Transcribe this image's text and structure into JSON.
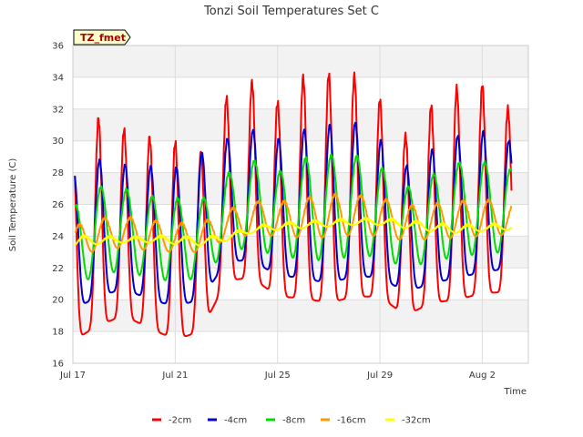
{
  "chart_data": {
    "type": "line",
    "title": "Tonzi Soil Temperatures Set C",
    "xlabel": "Time",
    "ylabel": "Soil Temperature (C)",
    "badge": "TZ_fmet",
    "xlim": [
      0,
      17.8
    ],
    "ylim": [
      16,
      36
    ],
    "yticks": [
      16,
      18,
      20,
      22,
      24,
      26,
      28,
      30,
      32,
      34,
      36
    ],
    "xticks": [
      {
        "value": 0,
        "label": "Jul 17"
      },
      {
        "value": 4,
        "label": "Jul 21"
      },
      {
        "value": 8,
        "label": "Jul 25"
      },
      {
        "value": 12,
        "label": "Jul 29"
      },
      {
        "value": 16,
        "label": "Aug 2"
      }
    ],
    "grid": true,
    "legend_position": "bottom",
    "series": [
      {
        "name": "-2cm",
        "color": "#ff0000",
        "phase": 0.0,
        "peak_sharpness": 3,
        "days": [
          0,
          1,
          2,
          3,
          4,
          5,
          6,
          7,
          8,
          9,
          10,
          11,
          12,
          13,
          14,
          15,
          16,
          17
        ],
        "max": [
          29.6,
          31.4,
          30.7,
          30.2,
          29.9,
          29.2,
          32.7,
          33.7,
          32.4,
          34.0,
          34.2,
          34.1,
          32.6,
          30.3,
          32.2,
          33.3,
          33.5,
          32.0
        ],
        "min": [
          17.4,
          18.4,
          19.0,
          18.2,
          17.5,
          18.0,
          21.2,
          21.4,
          20.2,
          20.1,
          19.8,
          20.2,
          20.2,
          19.0,
          19.8,
          20.0,
          20.4,
          20.5
        ]
      },
      {
        "name": "-4cm",
        "color": "#0000cc",
        "phase": 0.04,
        "peak_sharpness": 2,
        "days": [
          0,
          1,
          2,
          3,
          4,
          5,
          6,
          7,
          8,
          9,
          10,
          11,
          12,
          13,
          14,
          15,
          16,
          17
        ],
        "max": [
          27.9,
          28.8,
          28.5,
          28.4,
          28.3,
          29.2,
          30.1,
          30.7,
          30.1,
          30.7,
          31.0,
          31.2,
          30.1,
          28.4,
          29.4,
          30.3,
          30.6,
          30.0
        ],
        "min": [
          19.4,
          20.2,
          20.7,
          20.0,
          19.6,
          20.0,
          22.4,
          22.5,
          21.5,
          21.4,
          21.0,
          21.5,
          21.4,
          20.5,
          21.0,
          21.4,
          21.7,
          22.0
        ]
      },
      {
        "name": "-8cm",
        "color": "#00dd00",
        "phase": 0.1,
        "peak_sharpness": 1,
        "days": [
          0,
          1,
          2,
          3,
          4,
          5,
          6,
          7,
          8,
          9,
          10,
          11,
          12,
          13,
          14,
          15,
          16,
          17
        ],
        "max": [
          25.8,
          27.1,
          27.0,
          26.5,
          26.4,
          26.2,
          27.9,
          28.8,
          28.0,
          28.9,
          29.1,
          29.1,
          28.4,
          27.0,
          27.8,
          28.6,
          28.7,
          28.2
        ],
        "min": [
          20.8,
          21.6,
          21.8,
          21.4,
          21.1,
          21.4,
          23.0,
          23.3,
          22.7,
          22.6,
          22.4,
          22.8,
          22.7,
          22.0,
          22.4,
          22.7,
          22.9,
          23.0
        ]
      },
      {
        "name": "-16cm",
        "color": "#ff9900",
        "phase": 0.25,
        "peak_sharpness": 1,
        "days": [
          0,
          1,
          2,
          3,
          4,
          5,
          6,
          7,
          8,
          9,
          10,
          11,
          12,
          13,
          14,
          15,
          16,
          17
        ],
        "max": [
          24.6,
          25.1,
          25.2,
          25.0,
          24.8,
          24.8,
          25.6,
          26.2,
          26.1,
          26.4,
          26.6,
          26.6,
          26.4,
          25.9,
          26.0,
          26.2,
          26.3,
          26.1
        ],
        "min": [
          22.8,
          23.1,
          23.3,
          23.1,
          23.0,
          23.0,
          23.8,
          24.1,
          24.0,
          23.9,
          23.9,
          24.1,
          24.0,
          23.7,
          23.8,
          23.9,
          24.0,
          24.1
        ]
      },
      {
        "name": "-32cm",
        "color": "#ffff00",
        "phase": 0.45,
        "peak_sharpness": 1,
        "days": [
          0,
          1,
          2,
          3,
          4,
          5,
          6,
          7,
          8,
          9,
          10,
          11,
          12,
          13,
          14,
          15,
          16,
          17
        ],
        "max": [
          24.0,
          24.0,
          23.9,
          24.0,
          24.0,
          23.9,
          24.1,
          24.6,
          24.8,
          24.9,
          25.0,
          25.1,
          25.1,
          25.0,
          24.8,
          24.7,
          24.7,
          24.8
        ],
        "min": [
          23.3,
          23.5,
          23.6,
          23.6,
          23.5,
          23.4,
          23.7,
          24.2,
          24.4,
          24.5,
          24.6,
          24.7,
          24.7,
          24.5,
          24.3,
          24.2,
          24.3,
          24.4
        ]
      }
    ]
  }
}
